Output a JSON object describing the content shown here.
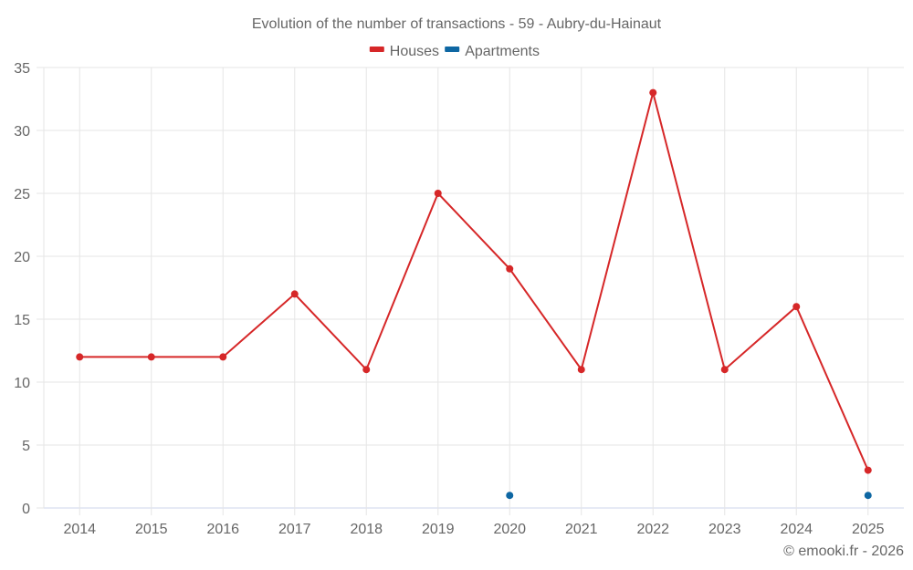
{
  "chart_data": {
    "type": "line",
    "title": "Evolution of the number of transactions - 59 - Aubry-du-Hainaut",
    "xlabel": "",
    "ylabel": "",
    "categories": [
      "2014",
      "2015",
      "2016",
      "2017",
      "2018",
      "2019",
      "2020",
      "2021",
      "2022",
      "2023",
      "2024",
      "2025"
    ],
    "ylim": [
      0,
      35
    ],
    "yticks": [
      0,
      5,
      10,
      15,
      20,
      25,
      30,
      35
    ],
    "grid": true,
    "legend_position": "top",
    "series": [
      {
        "name": "Houses",
        "color": "#d62728",
        "values": [
          12,
          12,
          12,
          17,
          11,
          25,
          19,
          11,
          33,
          11,
          16,
          3
        ]
      },
      {
        "name": "Apartments",
        "color": "#0e67a3",
        "values": [
          null,
          null,
          null,
          null,
          null,
          null,
          1,
          null,
          null,
          null,
          null,
          1
        ]
      }
    ],
    "credit": "© emooki.fr - 2026"
  }
}
